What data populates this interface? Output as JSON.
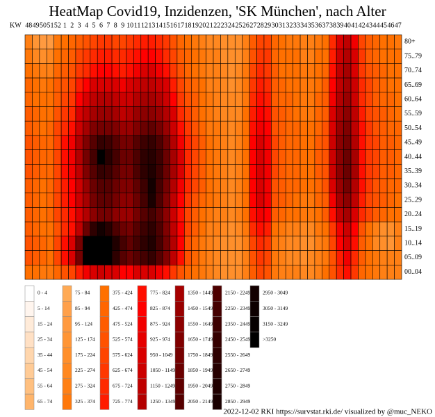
{
  "chart_data": {
    "type": "heatmap",
    "title": "HeatMap Covid19, Inzidenzen, 'SK München', nach Alter",
    "x_label": "KW",
    "x": [
      48,
      49,
      50,
      51,
      52,
      1,
      2,
      3,
      4,
      5,
      6,
      7,
      8,
      9,
      10,
      11,
      12,
      13,
      14,
      15,
      16,
      17,
      18,
      19,
      20,
      21,
      22,
      23,
      24,
      25,
      26,
      27,
      28,
      29,
      30,
      31,
      32,
      33,
      34,
      35,
      36,
      37,
      38,
      39,
      40,
      41,
      42,
      43,
      44,
      45,
      46,
      47
    ],
    "y": [
      "80+",
      "75..79",
      "70..74",
      "65..69",
      "60..64",
      "55..59",
      "50..54",
      "45..49",
      "40..44",
      "35..39",
      "30..34",
      "25..29",
      "20..24",
      "15..19",
      "10..14",
      "05..09",
      "00..04"
    ],
    "values": [
      [
        300,
        150,
        100,
        120,
        350,
        400,
        450,
        500,
        550,
        600,
        650,
        650,
        600,
        600,
        650,
        700,
        750,
        750,
        700,
        650,
        550,
        450,
        400,
        350,
        300,
        250,
        250,
        200,
        180,
        200,
        300,
        500,
        600,
        600,
        450,
        400,
        350,
        350,
        300,
        300,
        350,
        400,
        700,
        1000,
        1200,
        900,
        600,
        500,
        450,
        400,
        380,
        350
      ],
      [
        350,
        250,
        200,
        250,
        400,
        450,
        500,
        600,
        650,
        700,
        750,
        750,
        700,
        700,
        750,
        800,
        850,
        850,
        800,
        700,
        600,
        500,
        450,
        400,
        350,
        300,
        280,
        220,
        200,
        220,
        320,
        550,
        650,
        650,
        450,
        400,
        380,
        380,
        320,
        320,
        380,
        420,
        750,
        1100,
        1300,
        950,
        650,
        520,
        470,
        420,
        400,
        380
      ],
      [
        400,
        350,
        300,
        320,
        450,
        500,
        550,
        650,
        700,
        800,
        850,
        850,
        800,
        750,
        800,
        900,
        950,
        950,
        900,
        800,
        650,
        550,
        450,
        400,
        350,
        300,
        280,
        230,
        200,
        230,
        330,
        600,
        700,
        650,
        480,
        420,
        400,
        380,
        330,
        330,
        400,
        450,
        800,
        1150,
        1350,
        1000,
        650,
        550,
        480,
        430,
        400,
        380
      ],
      [
        450,
        400,
        350,
        380,
        500,
        550,
        600,
        750,
        850,
        950,
        1000,
        1000,
        950,
        900,
        950,
        1050,
        1150,
        1150,
        1050,
        950,
        750,
        600,
        500,
        450,
        380,
        320,
        300,
        250,
        220,
        250,
        350,
        650,
        750,
        700,
        500,
        450,
        420,
        400,
        350,
        350,
        420,
        480,
        850,
        1200,
        1400,
        1050,
        700,
        580,
        500,
        450,
        420,
        400
      ],
      [
        450,
        420,
        380,
        400,
        520,
        600,
        650,
        850,
        1000,
        1150,
        1250,
        1250,
        1150,
        1050,
        1100,
        1250,
        1400,
        1400,
        1250,
        1100,
        850,
        650,
        550,
        480,
        400,
        340,
        300,
        260,
        230,
        260,
        370,
        700,
        800,
        750,
        520,
        470,
        430,
        410,
        360,
        360,
        430,
        500,
        900,
        1300,
        1500,
        1100,
        720,
        600,
        520,
        460,
        430,
        410
      ],
      [
        480,
        450,
        400,
        420,
        550,
        650,
        700,
        950,
        1150,
        1350,
        1450,
        1450,
        1350,
        1200,
        1250,
        1450,
        1600,
        1600,
        1450,
        1250,
        950,
        700,
        600,
        500,
        420,
        350,
        320,
        270,
        240,
        270,
        380,
        750,
        850,
        800,
        540,
        480,
        440,
        420,
        370,
        370,
        440,
        520,
        950,
        1350,
        1600,
        1150,
        750,
        620,
        540,
        480,
        450,
        420
      ],
      [
        500,
        470,
        420,
        440,
        580,
        700,
        800,
        1100,
        1400,
        1650,
        1800,
        1800,
        1650,
        1450,
        1450,
        1700,
        1900,
        1950,
        1750,
        1450,
        1100,
        800,
        650,
        550,
        450,
        370,
        330,
        280,
        250,
        280,
        400,
        800,
        900,
        850,
        560,
        500,
        460,
        430,
        380,
        380,
        460,
        540,
        1000,
        1450,
        1700,
        1200,
        780,
        640,
        560,
        500,
        460,
        430
      ],
      [
        550,
        500,
        450,
        470,
        620,
        800,
        900,
        1300,
        1700,
        2100,
        2500,
        2400,
        2100,
        1800,
        1800,
        2100,
        2400,
        2500,
        2200,
        1800,
        1300,
        900,
        700,
        600,
        480,
        400,
        350,
        300,
        260,
        300,
        420,
        850,
        950,
        900,
        580,
        520,
        470,
        440,
        390,
        390,
        480,
        560,
        1050,
        1550,
        1800,
        1300,
        800,
        660,
        580,
        520,
        480,
        450
      ],
      [
        550,
        500,
        450,
        470,
        620,
        800,
        900,
        1300,
        1800,
        2300,
        3300,
        2700,
        2300,
        1900,
        1900,
        2200,
        2600,
        2700,
        2400,
        1900,
        1400,
        950,
        700,
        600,
        480,
        400,
        350,
        300,
        260,
        300,
        420,
        850,
        950,
        900,
        580,
        520,
        470,
        440,
        390,
        390,
        480,
        560,
        1050,
        1600,
        1900,
        1350,
        800,
        660,
        580,
        520,
        480,
        450
      ],
      [
        550,
        500,
        450,
        470,
        620,
        800,
        900,
        1200,
        1700,
        2100,
        2500,
        2400,
        2100,
        1800,
        1800,
        2200,
        2600,
        2800,
        2400,
        1900,
        1400,
        950,
        700,
        600,
        480,
        400,
        350,
        300,
        260,
        300,
        420,
        850,
        950,
        900,
        580,
        520,
        470,
        440,
        390,
        390,
        480,
        560,
        1050,
        1600,
        1900,
        1350,
        800,
        660,
        580,
        520,
        480,
        450
      ],
      [
        500,
        470,
        420,
        450,
        600,
        750,
        850,
        1100,
        1500,
        1900,
        2100,
        2100,
        1900,
        1700,
        1700,
        2000,
        2400,
        3000,
        2300,
        1800,
        1300,
        900,
        700,
        600,
        480,
        400,
        350,
        300,
        260,
        300,
        420,
        850,
        950,
        900,
        560,
        500,
        460,
        430,
        380,
        380,
        470,
        550,
        1000,
        1500,
        1800,
        1300,
        780,
        640,
        560,
        500,
        460,
        430
      ],
      [
        500,
        470,
        420,
        450,
        600,
        750,
        850,
        1100,
        1400,
        1800,
        2000,
        2000,
        1800,
        1600,
        1600,
        1900,
        2300,
        2900,
        2200,
        1700,
        1200,
        850,
        650,
        550,
        450,
        380,
        340,
        300,
        260,
        300,
        420,
        850,
        950,
        900,
        540,
        480,
        440,
        420,
        370,
        370,
        450,
        520,
        900,
        1350,
        1600,
        1150,
        750,
        620,
        540,
        480,
        450,
        420
      ],
      [
        480,
        450,
        400,
        430,
        580,
        700,
        800,
        1000,
        1300,
        1600,
        1800,
        1800,
        1600,
        1500,
        1500,
        1800,
        2100,
        2300,
        2000,
        1600,
        1100,
        800,
        600,
        500,
        420,
        360,
        320,
        280,
        240,
        280,
        400,
        800,
        900,
        850,
        500,
        450,
        420,
        400,
        350,
        350,
        420,
        480,
        800,
        1150,
        1350,
        1000,
        700,
        580,
        500,
        450,
        420,
        400
      ],
      [
        500,
        450,
        400,
        400,
        550,
        700,
        800,
        1200,
        1900,
        2600,
        3000,
        2700,
        2200,
        1900,
        1800,
        2100,
        2400,
        2600,
        2200,
        1700,
        1200,
        850,
        600,
        500,
        400,
        320,
        280,
        240,
        200,
        240,
        350,
        700,
        800,
        750,
        400,
        340,
        300,
        280,
        250,
        260,
        330,
        400,
        650,
        900,
        1100,
        850,
        550,
        420,
        300,
        220,
        200,
        300
      ],
      [
        550,
        500,
        450,
        420,
        600,
        800,
        1000,
        1800,
        3300,
        3500,
        3500,
        3400,
        2800,
        2300,
        2000,
        2300,
        2600,
        2800,
        2300,
        1800,
        1250,
        850,
        550,
        450,
        350,
        280,
        250,
        200,
        180,
        200,
        300,
        600,
        700,
        650,
        350,
        300,
        250,
        230,
        200,
        210,
        280,
        350,
        600,
        850,
        1000,
        800,
        500,
        380,
        250,
        180,
        170,
        280
      ],
      [
        550,
        500,
        450,
        420,
        600,
        800,
        1000,
        1800,
        3300,
        3500,
        3500,
        3400,
        2600,
        2100,
        1900,
        2100,
        2300,
        2500,
        2100,
        1700,
        1200,
        800,
        550,
        450,
        350,
        280,
        250,
        200,
        180,
        200,
        300,
        550,
        650,
        600,
        350,
        300,
        270,
        250,
        220,
        230,
        300,
        370,
        550,
        750,
        900,
        700,
        480,
        400,
        330,
        300,
        280,
        300
      ],
      [
        400,
        380,
        350,
        350,
        450,
        550,
        600,
        750,
        900,
        1000,
        1050,
        1000,
        950,
        850,
        850,
        950,
        1000,
        1000,
        900,
        800,
        650,
        550,
        450,
        400,
        330,
        280,
        250,
        220,
        200,
        220,
        300,
        500,
        600,
        550,
        350,
        320,
        300,
        280,
        260,
        270,
        320,
        380,
        550,
        700,
        800,
        650,
        450,
        400,
        350,
        320,
        300,
        320
      ]
    ],
    "legend": [
      {
        "label": "0 - 4",
        "min": 0,
        "color": "#ffffff"
      },
      {
        "label": "5 - 14",
        "min": 5,
        "color": "#fff5ee"
      },
      {
        "label": "15 - 24",
        "min": 15,
        "color": "#ffebd9"
      },
      {
        "label": "25 - 34",
        "min": 25,
        "color": "#ffe0c4"
      },
      {
        "label": "35 - 44",
        "min": 35,
        "color": "#ffd6ad"
      },
      {
        "label": "45 - 54",
        "min": 45,
        "color": "#ffcb96"
      },
      {
        "label": "55 - 64",
        "min": 55,
        "color": "#ffc080"
      },
      {
        "label": "65 - 74",
        "min": 65,
        "color": "#ffb56b"
      },
      {
        "label": "75 - 84",
        "min": 75,
        "color": "#ffaa55"
      },
      {
        "label": "85 - 94",
        "min": 85,
        "color": "#ffa04a"
      },
      {
        "label": "95 - 124",
        "min": 95,
        "color": "#ff9a40"
      },
      {
        "label": "125 - 174",
        "min": 125,
        "color": "#ff9535"
      },
      {
        "label": "175 - 224",
        "min": 175,
        "color": "#ff8f2b"
      },
      {
        "label": "225 - 274",
        "min": 225,
        "color": "#ff8820"
      },
      {
        "label": "275 - 324",
        "min": 275,
        "color": "#ff8015"
      },
      {
        "label": "325 - 374",
        "min": 325,
        "color": "#ff780a"
      },
      {
        "label": "375 - 424",
        "min": 375,
        "color": "#ff7000"
      },
      {
        "label": "425 - 474",
        "min": 425,
        "color": "#ff6600"
      },
      {
        "label": "475 - 524",
        "min": 475,
        "color": "#ff5c00"
      },
      {
        "label": "525 - 574",
        "min": 525,
        "color": "#ff5200"
      },
      {
        "label": "575 - 624",
        "min": 575,
        "color": "#ff4500"
      },
      {
        "label": "625 - 674",
        "min": 625,
        "color": "#ff3800"
      },
      {
        "label": "675 - 724",
        "min": 675,
        "color": "#ff2a00"
      },
      {
        "label": "725 - 774",
        "min": 725,
        "color": "#ff1c00"
      },
      {
        "label": "775 - 824",
        "min": 775,
        "color": "#ff0e00"
      },
      {
        "label": "825 - 874",
        "min": 825,
        "color": "#ff0000"
      },
      {
        "label": "875 - 924",
        "min": 875,
        "color": "#f20000"
      },
      {
        "label": "925 - 974",
        "min": 925,
        "color": "#e60000"
      },
      {
        "label": "950 - 1049",
        "min": 950,
        "color": "#d90000"
      },
      {
        "label": "1050 - 1149",
        "min": 1050,
        "color": "#cc0000"
      },
      {
        "label": "1150 - 1249",
        "min": 1150,
        "color": "#bf0000"
      },
      {
        "label": "1250 - 1349",
        "min": 1250,
        "color": "#b30000"
      },
      {
        "label": "1350 - 1449",
        "min": 1350,
        "color": "#a60000"
      },
      {
        "label": "1450 - 1549",
        "min": 1450,
        "color": "#990000"
      },
      {
        "label": "1550 - 1649",
        "min": 1550,
        "color": "#8c0000"
      },
      {
        "label": "1650 - 1749",
        "min": 1650,
        "color": "#800000"
      },
      {
        "label": "1750 - 1849",
        "min": 1750,
        "color": "#750000"
      },
      {
        "label": "1850 - 1949",
        "min": 1850,
        "color": "#6b0000"
      },
      {
        "label": "1950 - 2049",
        "min": 1950,
        "color": "#600000"
      },
      {
        "label": "2050 - 2149",
        "min": 2050,
        "color": "#560000"
      },
      {
        "label": "2150 - 2249",
        "min": 2150,
        "color": "#4d0000"
      },
      {
        "label": "2250 - 2349",
        "min": 2250,
        "color": "#450000"
      },
      {
        "label": "2350 - 2449",
        "min": 2350,
        "color": "#3d0000"
      },
      {
        "label": "2450 - 2549",
        "min": 2450,
        "color": "#350000"
      },
      {
        "label": "2550 - 2649",
        "min": 2550,
        "color": "#2e0000"
      },
      {
        "label": "2650 - 2749",
        "min": 2650,
        "color": "#270000"
      },
      {
        "label": "2750 - 2849",
        "min": 2750,
        "color": "#200000"
      },
      {
        "label": "2850 - 2949",
        "min": 2850,
        "color": "#1a0000"
      },
      {
        "label": "2950 - 3049",
        "min": 2950,
        "color": "#130000"
      },
      {
        "label": "3050 - 3149",
        "min": 3050,
        "color": "#0d0000"
      },
      {
        "label": "3150 - 3249",
        "min": 3150,
        "color": "#060000"
      },
      {
        "label": ">3250",
        "min": 3250,
        "color": "#000000"
      }
    ],
    "footer": "2022-12-02 RKI https://survstat.rki.de/ visualized by @muc_NEKO"
  }
}
